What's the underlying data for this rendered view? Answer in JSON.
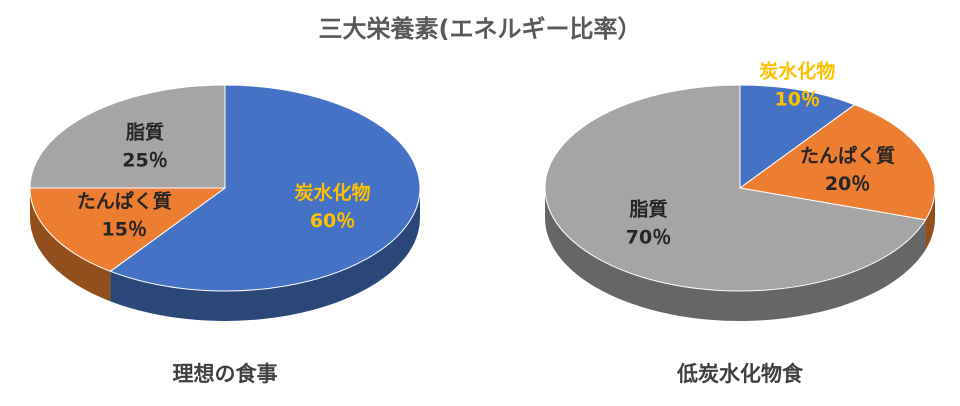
{
  "title": "三大栄養素(エネルギー比率）",
  "chart_data": [
    {
      "type": "pie",
      "title": "理想の食事",
      "categories": [
        "炭水化物",
        "たんぱく質",
        "脂質"
      ],
      "values": [
        60,
        15,
        25
      ],
      "value_labels": [
        "60％",
        "15％",
        "25％"
      ],
      "colors": [
        "#4472c4",
        "#ed7d31",
        "#a5a5a5"
      ],
      "label_colors": [
        "#ffc000",
        "#262626",
        "#262626"
      ]
    },
    {
      "type": "pie",
      "title": "低炭水化物食",
      "categories": [
        "炭水化物",
        "たんぱく質",
        "脂質"
      ],
      "values": [
        10,
        20,
        70
      ],
      "value_labels": [
        "10％",
        "20％",
        "70％"
      ],
      "colors": [
        "#4472c4",
        "#ed7d31",
        "#a5a5a5"
      ],
      "label_colors": [
        "#ffc000",
        "#262626",
        "#262626"
      ]
    }
  ]
}
